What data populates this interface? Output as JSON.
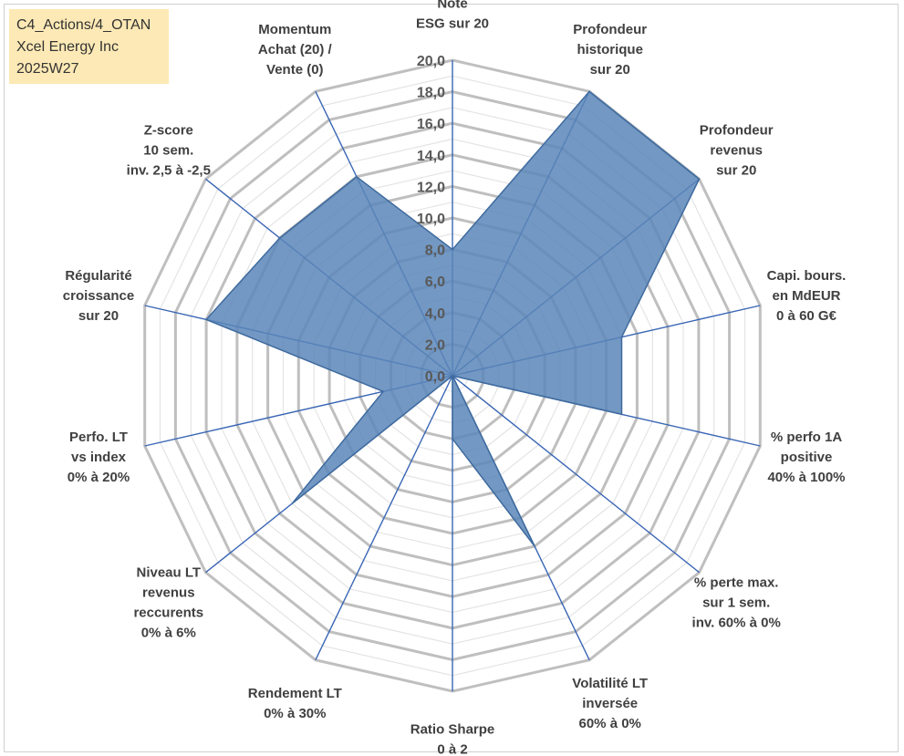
{
  "info_box": {
    "line1": "C4_Actions/4_OTAN",
    "line2": "Xcel Energy Inc",
    "line3": "2025W27"
  },
  "colors": {
    "fill": "#5b86b8",
    "stroke": "#3e6a9e",
    "spoke": "#3a66b5",
    "major_grid": "#bfbfbf",
    "minor_grid": "#e4e4e4",
    "info_bg": "#fde9b5"
  },
  "chart_data": {
    "type": "radar",
    "rmin": 0,
    "rmax": 20,
    "major_step": 2,
    "minor_step": 1,
    "tick_labels": [
      "0,0",
      "2,0",
      "4,0",
      "6,0",
      "8,0",
      "10,0",
      "12,0",
      "14,0",
      "16,0",
      "18,0",
      "20,0"
    ],
    "axes": [
      [
        "Note",
        "ESG sur 20"
      ],
      [
        "Profondeur",
        "historique",
        "sur 20"
      ],
      [
        "Profondeur",
        "revenus",
        "sur 20"
      ],
      [
        "Capi. bours.",
        "en MdEUR",
        "0 à 60 G€"
      ],
      [
        "% perfo 1A",
        "positive",
        "40% à 100%"
      ],
      [
        "% perte max.",
        "sur 1 sem.",
        "inv. 60% à 0%"
      ],
      [
        "Volatilité LT",
        "inversée",
        "60% à 0%"
      ],
      [
        "Ratio Sharpe",
        "0 à 2"
      ],
      [
        "Rendement LT",
        "0% à 30%"
      ],
      [
        "Niveau LT",
        "revenus",
        "reccurents",
        "0% à 6%"
      ],
      [
        "Perfo. LT",
        "vs index",
        "0% à 20%"
      ],
      [
        "Régularité",
        "croissance",
        "sur 20"
      ],
      [
        "Z-score",
        "10 sem.",
        "inv. 2,5 à -2,5"
      ],
      [
        "Momentum",
        "Achat (20) /",
        "Vente (0)"
      ]
    ],
    "series": [
      {
        "values": [
          8.0,
          20.0,
          20.0,
          11.0,
          11.0,
          0.0,
          12.0,
          4.0,
          0.0,
          13.0,
          4.5,
          16.0,
          14.0,
          14.0
        ]
      }
    ]
  }
}
